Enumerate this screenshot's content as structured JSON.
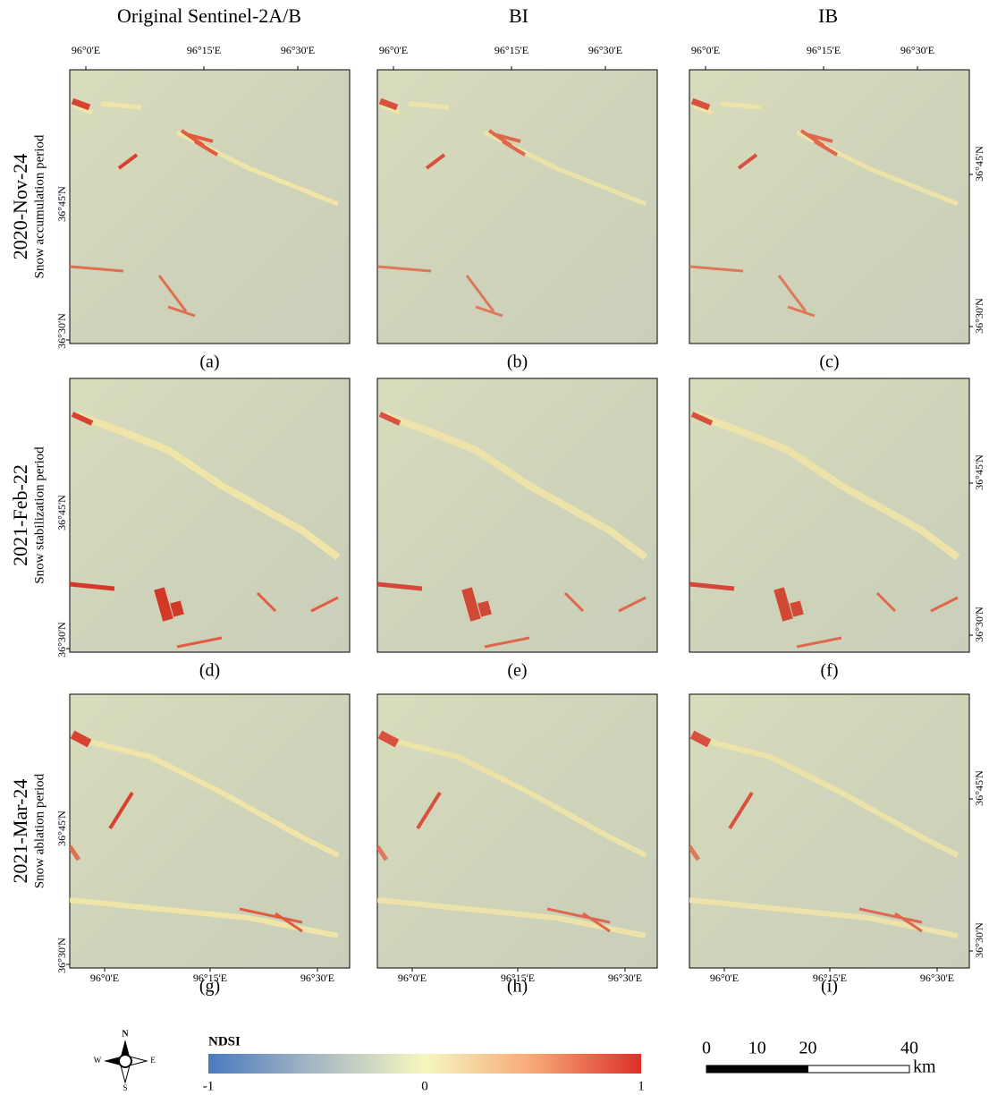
{
  "columns": [
    "Original Sentinel-2A/B",
    "BI",
    "IB"
  ],
  "rows": [
    {
      "date": "2020-Nov-24",
      "period": "Snow accumulation period"
    },
    {
      "date": "2021-Feb-22",
      "period": "Snow stabilization period"
    },
    {
      "date": "2021-Mar-24",
      "period": "Snow ablation period"
    }
  ],
  "panel_labels": [
    "(a)",
    "(b)",
    "(c)",
    "(d)",
    "(e)",
    "(f)",
    "(g)",
    "(h)",
    "(i)"
  ],
  "lon_ticks": [
    "96°0'E",
    "96°15'E",
    "96°30'E"
  ],
  "lat_ticks": [
    "36°45'N",
    "36°30'N"
  ],
  "legend": {
    "title": "NDSI",
    "ticks": [
      -1,
      0,
      1
    ]
  },
  "scale_bar": {
    "ticks": [
      0,
      10,
      20,
      40
    ],
    "unit": "km"
  },
  "compass": {
    "north": "N",
    "east": "E",
    "south": "S",
    "west": "W"
  }
}
